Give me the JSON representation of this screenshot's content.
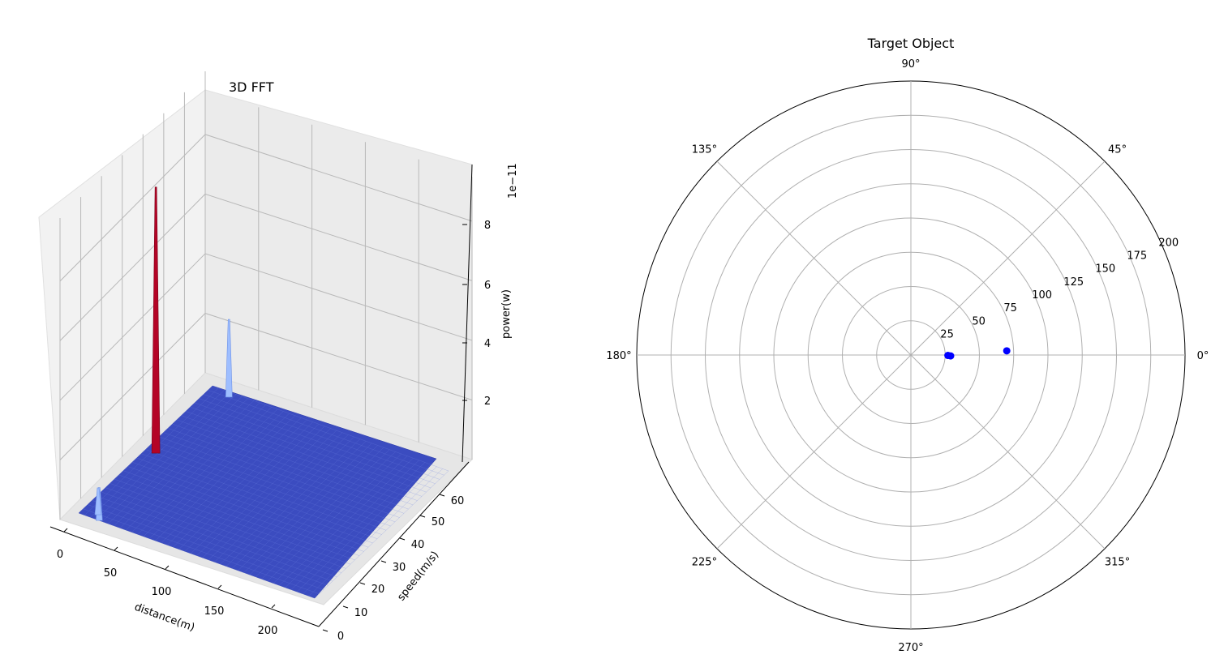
{
  "chart_data": [
    {
      "type": "surface",
      "title": "3D FFT",
      "xlabel": "distance(m)",
      "ylabel": "speed(m/s)",
      "zlabel": "power(w)",
      "z_offset_label": "1e−11",
      "xticks": [
        "0",
        "50",
        "100",
        "150",
        "200"
      ],
      "yticks": [
        "0",
        "10",
        "20",
        "30",
        "40",
        "50",
        "60"
      ],
      "zticks": [
        "2",
        "4",
        "6",
        "8"
      ],
      "xlim": [
        0,
        230
      ],
      "ylim": [
        0,
        66
      ],
      "zlim": [
        0,
        9.5
      ],
      "colormap": "coolwarm",
      "peaks": [
        {
          "x": 10,
          "y": 33,
          "z": 8.9
        },
        {
          "x": 20,
          "y": 64,
          "z": 2.6
        },
        {
          "x": 20,
          "y": 0,
          "z": 1.1
        },
        {
          "x": 15,
          "y": 2,
          "z": 0.9
        }
      ],
      "baseline_z": 0.0,
      "grid": true
    },
    {
      "type": "scatter",
      "subtype": "polar",
      "title": "Target Object",
      "theta_ticks": [
        "0°",
        "45°",
        "90°",
        "135°",
        "180°",
        "225°",
        "270°",
        "315°"
      ],
      "r_ticks": [
        "25",
        "50",
        "75",
        "100",
        "125",
        "150",
        "175",
        "200"
      ],
      "rlim": [
        0,
        200
      ],
      "points": [
        {
          "theta_deg": -1.3,
          "r": 29
        },
        {
          "theta_deg": -0.7,
          "r": 27
        },
        {
          "theta_deg": 2.5,
          "r": 70
        }
      ],
      "marker_color": "#0000ff",
      "grid": true
    }
  ]
}
